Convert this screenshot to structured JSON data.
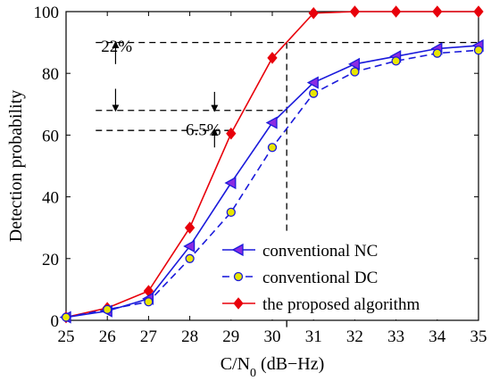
{
  "chart_data": {
    "type": "line",
    "title": "",
    "xlabel": "C/N",
    "xlabel_sub": "0",
    "xlabel_unit": " (dB−Hz)",
    "ylabel": "Detection probability",
    "xlim": [
      25,
      35
    ],
    "ylim": [
      0,
      100
    ],
    "xticks": [
      25,
      26,
      27,
      28,
      29,
      30,
      31,
      32,
      33,
      34,
      35
    ],
    "yticks": [
      0,
      20,
      40,
      60,
      80,
      100
    ],
    "grid": false,
    "legend_position": "bottom-right",
    "x": [
      25,
      26,
      27,
      28,
      29,
      30,
      31,
      32,
      33,
      34,
      35
    ],
    "series": [
      {
        "name": "conventional NC",
        "color": "#1a1adb",
        "dash": "solid",
        "marker": "triangle-left",
        "marker_fill": "#8a2be2",
        "values": [
          1,
          3,
          7,
          24,
          44.5,
          64,
          77,
          83,
          85.5,
          88,
          89
        ]
      },
      {
        "name": "conventional DC",
        "color": "#1a1adb",
        "dash": "dashed",
        "marker": "circle",
        "marker_fill": "#e8e600",
        "values": [
          1,
          3.5,
          6,
          20,
          35,
          56,
          73.5,
          80.5,
          84,
          86.5,
          87.5
        ]
      },
      {
        "name": "the proposed algorithm",
        "color": "#e8000b",
        "dash": "solid",
        "marker": "diamond",
        "marker_fill": "#e8000b",
        "values": [
          1,
          4,
          9.5,
          30,
          60.5,
          85,
          99.5,
          100,
          100,
          100,
          100
        ]
      }
    ],
    "reference_lines": {
      "horizontal": [
        90,
        68,
        61.5
      ],
      "vertical": [
        30.35
      ]
    },
    "annotations": [
      {
        "text": "22%",
        "x": 25.85,
        "y": 87
      },
      {
        "text": "6.5%",
        "x": 27.9,
        "y": 60
      }
    ]
  }
}
